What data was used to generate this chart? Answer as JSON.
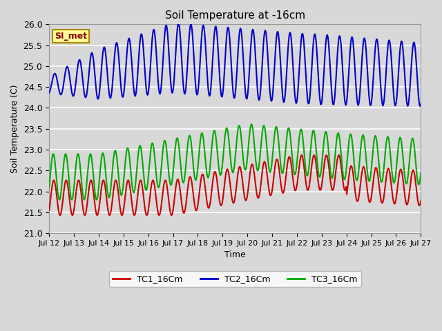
{
  "title": "Soil Temperature at -16cm",
  "xlabel": "Time",
  "ylabel": "Soil Temperature (C)",
  "ylim": [
    21.0,
    26.0
  ],
  "yticks": [
    21.0,
    21.5,
    22.0,
    22.5,
    23.0,
    23.5,
    24.0,
    24.5,
    25.0,
    25.5,
    26.0
  ],
  "xtick_labels": [
    "Jul 12",
    "Jul 13",
    "Jul 14",
    "Jul 15",
    "Jul 16",
    "Jul 17",
    "Jul 18",
    "Jul 19",
    "Jul 20",
    "Jul 21",
    "Jul 22",
    "Jul 23",
    "Jul 24",
    "Jul 25",
    "Jul 26",
    "Jul 27"
  ],
  "legend_labels": [
    "TC1_16Cm",
    "TC2_16Cm",
    "TC3_16Cm"
  ],
  "annotation_text": "SI_met",
  "annotation_bg": "#ffff99",
  "annotation_border": "#aa8800",
  "background_color": "#d8d8d8",
  "grid_color": "#ffffff",
  "line_width": 1.5,
  "tc1_color": "#cc0000",
  "tc2_color": "#0000cc",
  "tc3_color": "#00aa00"
}
